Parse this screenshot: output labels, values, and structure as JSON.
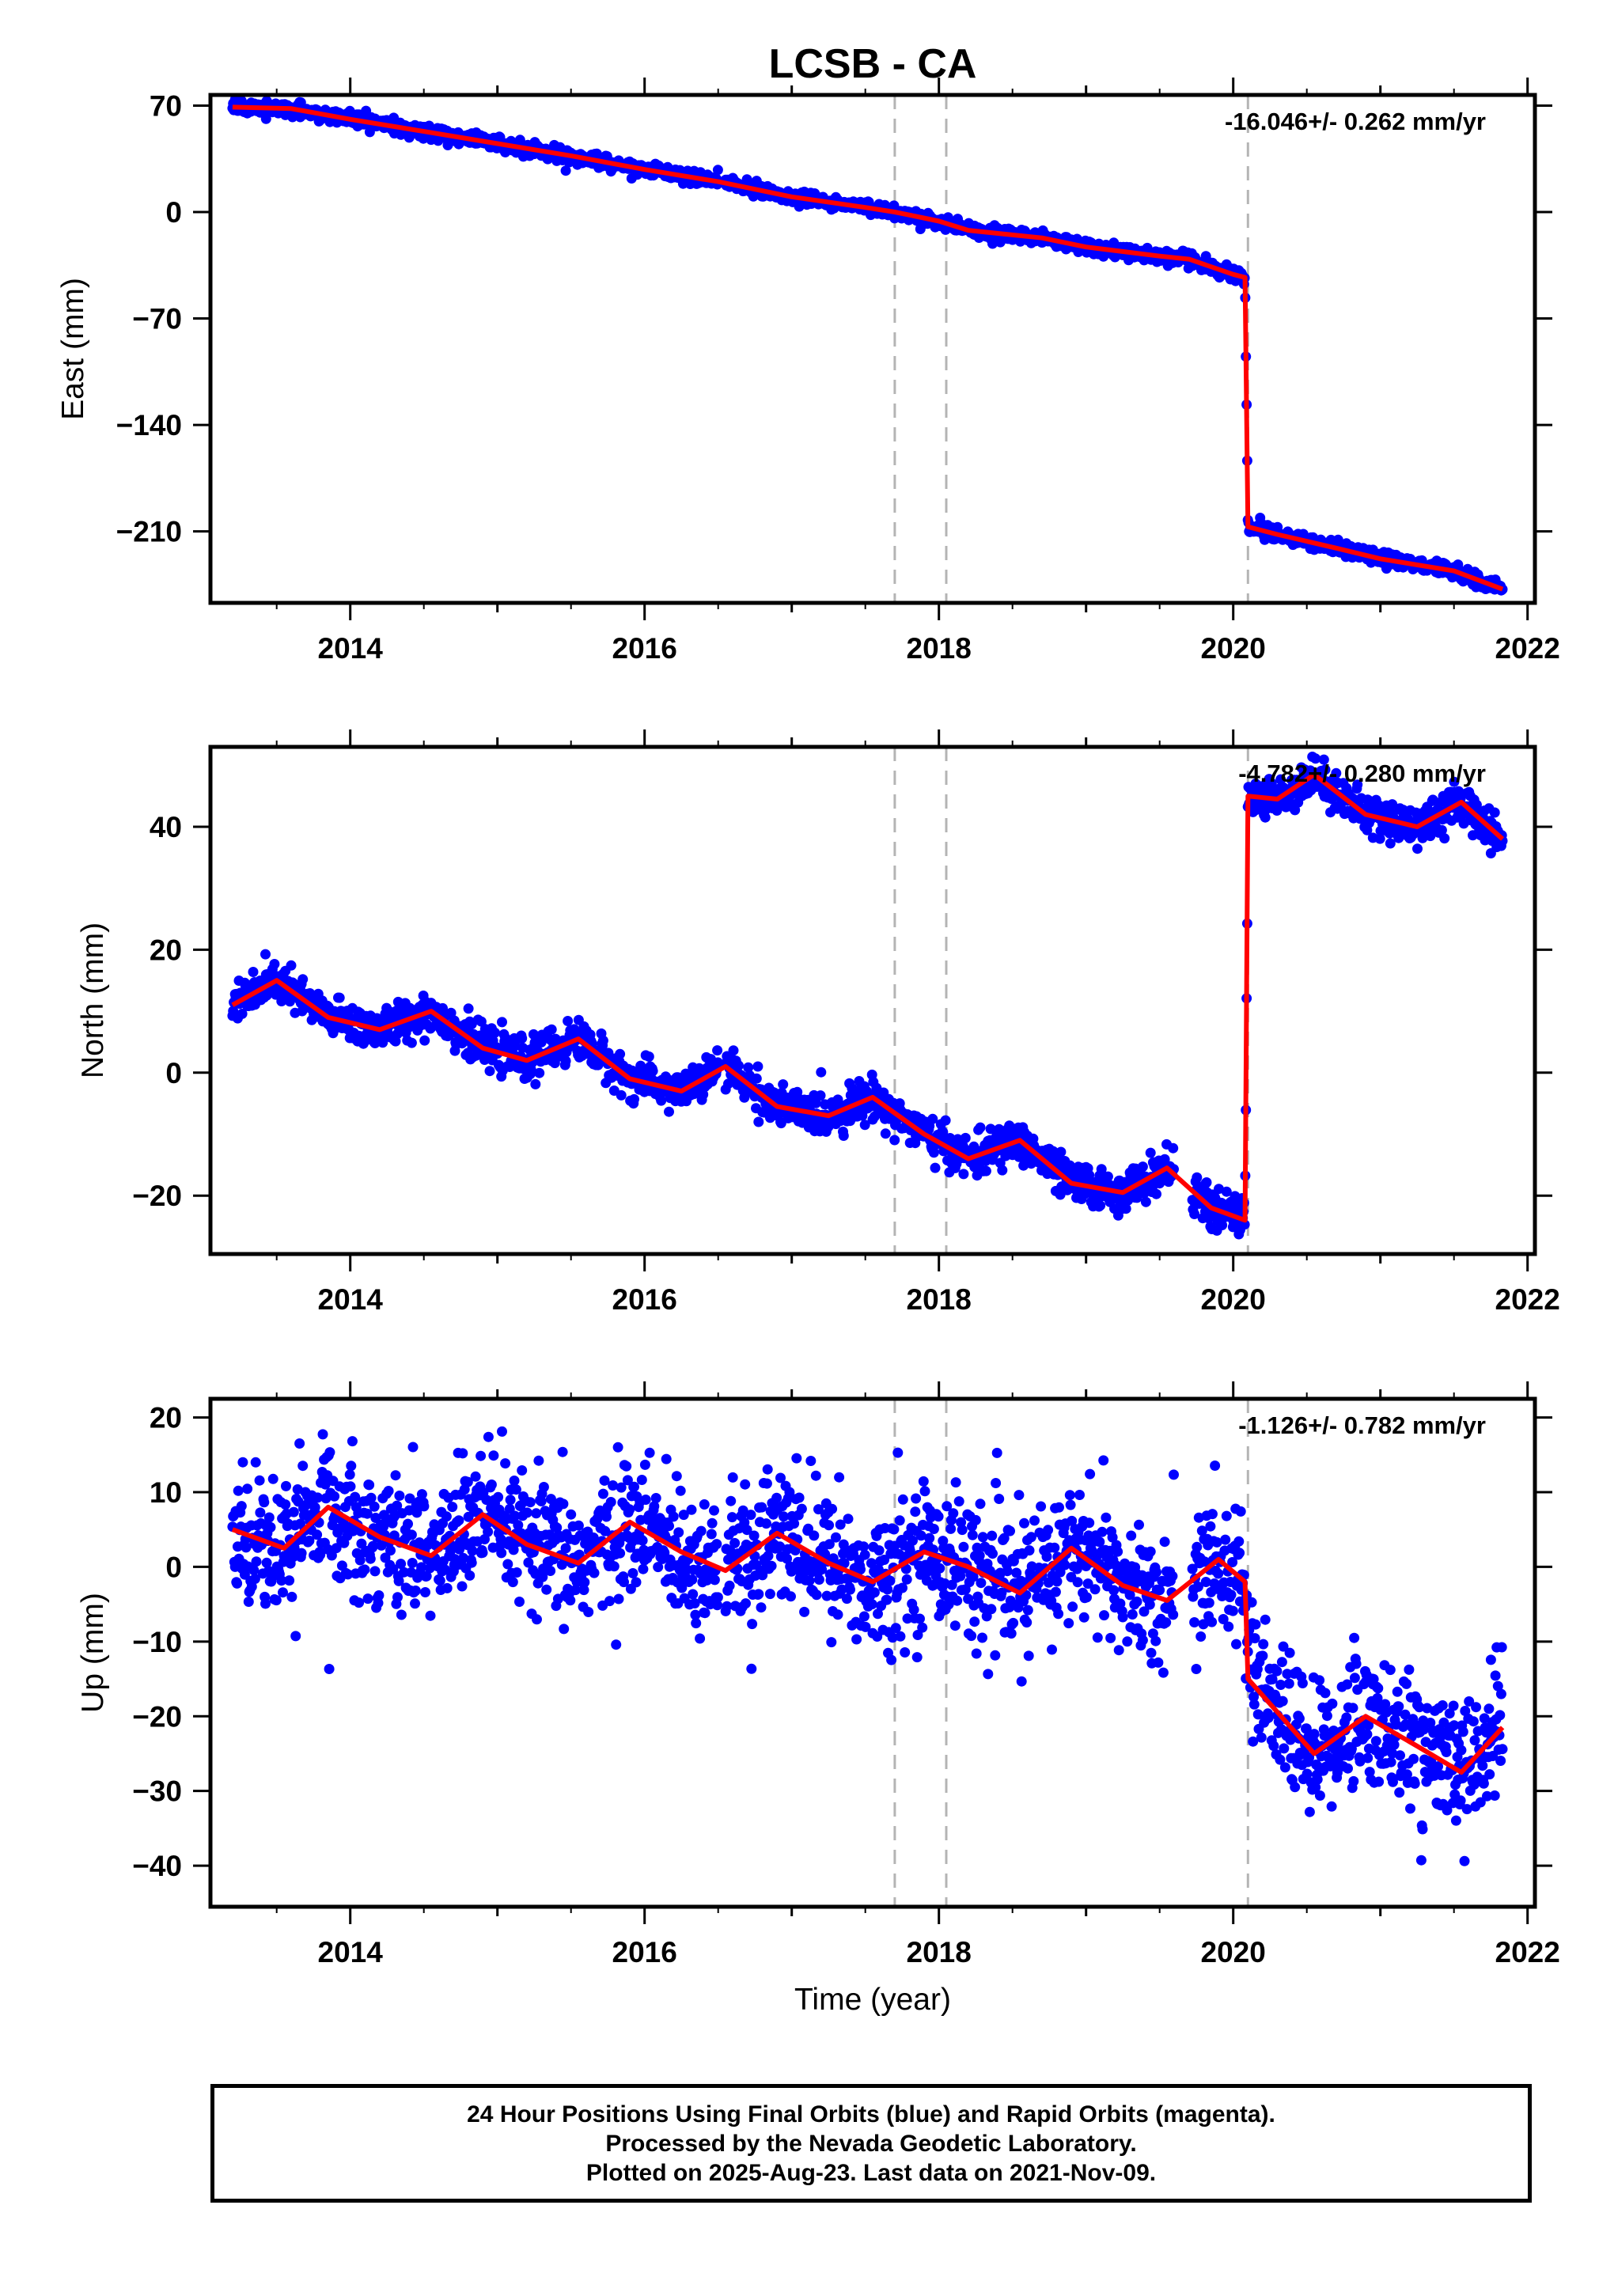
{
  "chart_data": {
    "title": "LCSB - CA",
    "type": "scatter",
    "xlabel": "Time (year)",
    "x_ticks": [
      2014,
      2016,
      2018,
      2020,
      2022
    ],
    "xlim": [
      2013.05,
      2022.05
    ],
    "vertical_markers": [
      2017.7,
      2018.05,
      2020.1
    ],
    "colors": {
      "points": "#0000ff",
      "model": "#ff0000",
      "markers": "#b4b4b4"
    },
    "panels": [
      {
        "name": "east",
        "ylabel": "East (mm)",
        "ylim": [
          -257,
          77
        ],
        "y_ticks": [
          70,
          0,
          -70,
          -140,
          -210
        ],
        "y_tick_labels": [
          "70",
          "0",
          "−70",
          "−140",
          "−210"
        ],
        "rate": "-16.046+/- 0.262 mm/yr",
        "scatter": 2.2,
        "model": [
          [
            2013.2,
            69
          ],
          [
            2013.6,
            68
          ],
          [
            2014.0,
            61
          ],
          [
            2014.5,
            53
          ],
          [
            2015.0,
            45
          ],
          [
            2015.5,
            37
          ],
          [
            2016.0,
            28
          ],
          [
            2016.5,
            20
          ],
          [
            2017.0,
            10
          ],
          [
            2017.5,
            3
          ],
          [
            2017.7,
            0
          ],
          [
            2018.0,
            -6
          ],
          [
            2018.2,
            -12
          ],
          [
            2018.7,
            -17
          ],
          [
            2019.0,
            -23
          ],
          [
            2019.5,
            -29
          ],
          [
            2019.7,
            -31
          ],
          [
            2020.0,
            -41
          ],
          [
            2020.08,
            -43
          ],
          [
            2020.1,
            -207
          ],
          [
            2020.3,
            -212
          ],
          [
            2020.7,
            -221
          ],
          [
            2021.0,
            -228
          ],
          [
            2021.5,
            -236
          ],
          [
            2021.83,
            -248
          ]
        ]
      },
      {
        "name": "north",
        "ylabel": "North (mm)",
        "ylim": [
          -29.5,
          53
        ],
        "y_ticks": [
          40,
          20,
          0,
          -20
        ],
        "y_tick_labels": [
          "40",
          "20",
          "0",
          "−20"
        ],
        "rate": "-4.782+/- 0.280 mm/yr",
        "scatter": 1.6,
        "model": [
          [
            2013.2,
            11
          ],
          [
            2013.5,
            15
          ],
          [
            2013.85,
            9
          ],
          [
            2014.2,
            7
          ],
          [
            2014.55,
            10
          ],
          [
            2014.9,
            4
          ],
          [
            2015.2,
            2
          ],
          [
            2015.55,
            5.5
          ],
          [
            2015.9,
            -1
          ],
          [
            2016.25,
            -3
          ],
          [
            2016.55,
            1
          ],
          [
            2016.9,
            -5.5
          ],
          [
            2017.25,
            -7
          ],
          [
            2017.55,
            -4
          ],
          [
            2017.9,
            -10
          ],
          [
            2018.2,
            -14
          ],
          [
            2018.55,
            -11
          ],
          [
            2018.9,
            -18
          ],
          [
            2019.25,
            -19.5
          ],
          [
            2019.55,
            -15.5
          ],
          [
            2019.85,
            -22
          ],
          [
            2020.08,
            -24
          ],
          [
            2020.1,
            45
          ],
          [
            2020.3,
            44.5
          ],
          [
            2020.55,
            48.5
          ],
          [
            2020.9,
            42
          ],
          [
            2021.25,
            40
          ],
          [
            2021.55,
            44
          ],
          [
            2021.83,
            38
          ]
        ]
      },
      {
        "name": "up",
        "ylabel": "Up (mm)",
        "ylim": [
          -45.5,
          22.5
        ],
        "y_ticks": [
          20,
          10,
          0,
          -10,
          -20,
          -30,
          -40
        ],
        "y_tick_labels": [
          "20",
          "10",
          "0",
          "−10",
          "−20",
          "−30",
          "−40"
        ],
        "rate": "-1.126+/- 0.782 mm/yr",
        "scatter": 4.5,
        "model": [
          [
            2013.2,
            5
          ],
          [
            2013.55,
            2.5
          ],
          [
            2013.85,
            8
          ],
          [
            2014.2,
            4
          ],
          [
            2014.55,
            1.5
          ],
          [
            2014.9,
            7
          ],
          [
            2015.2,
            3
          ],
          [
            2015.55,
            0.5
          ],
          [
            2015.9,
            6
          ],
          [
            2016.25,
            2
          ],
          [
            2016.55,
            -0.5
          ],
          [
            2016.9,
            4.5
          ],
          [
            2017.25,
            0.5
          ],
          [
            2017.55,
            -2
          ],
          [
            2017.9,
            2
          ],
          [
            2018.2,
            0
          ],
          [
            2018.55,
            -3.5
          ],
          [
            2018.9,
            2.5
          ],
          [
            2019.25,
            -2.5
          ],
          [
            2019.55,
            -4.5
          ],
          [
            2019.9,
            1
          ],
          [
            2020.08,
            -2
          ],
          [
            2020.1,
            -15
          ],
          [
            2020.55,
            -25
          ],
          [
            2020.9,
            -20
          ],
          [
            2021.25,
            -24
          ],
          [
            2021.55,
            -27.5
          ],
          [
            2021.83,
            -21.5
          ]
        ]
      }
    ]
  },
  "footer": {
    "line1": "24 Hour Positions Using Final Orbits (blue) and Rapid Orbits (magenta).",
    "line2": "Processed by the Nevada Geodetic Laboratory.",
    "line3": "Plotted on 2025-Aug-23. Last data on 2021-Nov-09."
  }
}
